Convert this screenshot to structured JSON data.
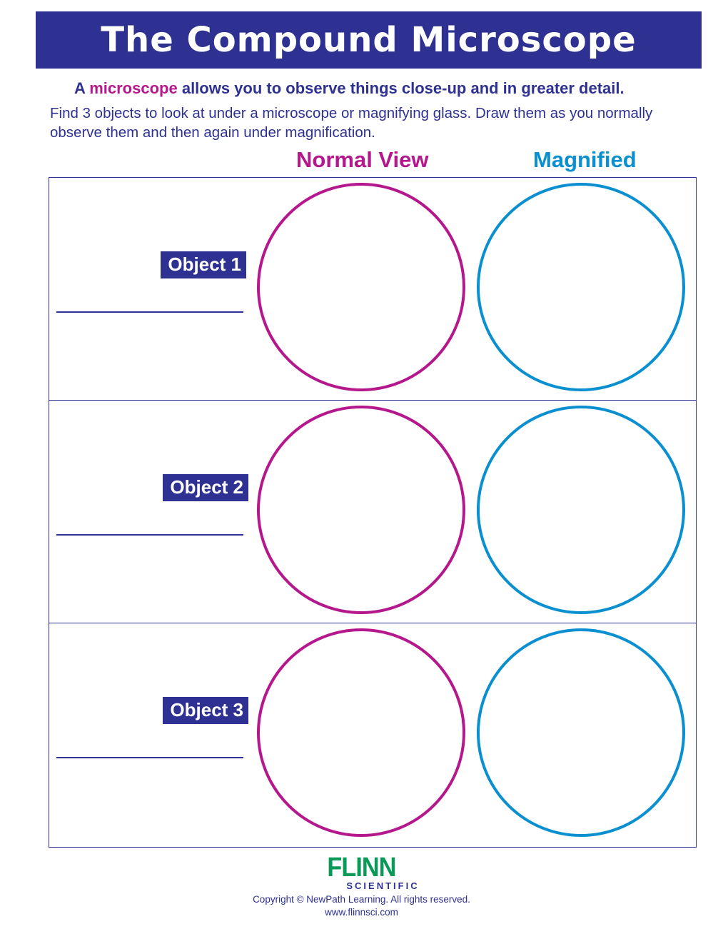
{
  "header": {
    "title": "The Compound Microscope"
  },
  "intro": {
    "lead_prefix": "A",
    "lead_highlight": "microscope",
    "lead_suffix": "allows you to observe things close-up and in greater detail.",
    "instructions": "Find 3 objects to look at under a microscope or magnifying glass.  Draw them as you normally observe them and then again under magnification."
  },
  "columns": {
    "normal": "Normal View",
    "magnified": "Magnified"
  },
  "rows": [
    {
      "label": "Object 1"
    },
    {
      "label": "Object 2"
    },
    {
      "label": "Object 3"
    }
  ],
  "colors": {
    "primary": "#2e3192",
    "normal": "#b5178c",
    "magnified": "#0a8fd0",
    "logo": "#0a9a58"
  },
  "footer": {
    "logo_main": "FLINN",
    "logo_sub": "SCIENTIFIC",
    "copyright": "Copyright © NewPath Learning. All rights reserved.",
    "url": "www.flinnsci.com"
  }
}
